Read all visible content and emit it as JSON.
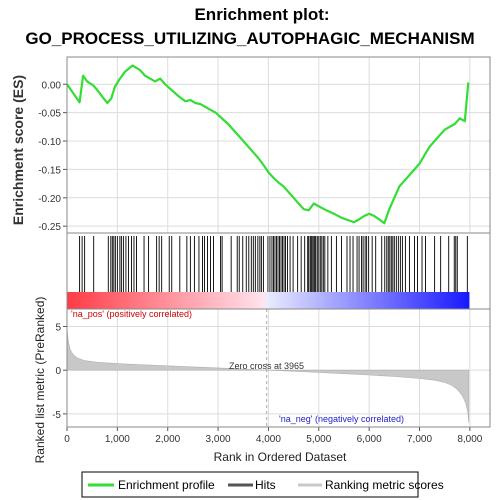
{
  "chart_data": {
    "type": "line",
    "title_line1": "Enrichment plot:",
    "title_line2": "GO_PROCESS_UTILIZING_AUTOPHAGIC_MECHANISM",
    "top_panel": {
      "ylabel": "Enrichment score (ES)",
      "ylim": [
        -0.262,
        0.048
      ],
      "yticks": [
        0.0,
        -0.05,
        -0.1,
        -0.15,
        -0.2,
        -0.25
      ],
      "ytick_labels": [
        "0.00",
        "-0.05",
        "-0.10",
        "-0.15",
        "-0.20",
        "-0.25"
      ],
      "series_name": "Enrichment profile",
      "x": [
        0,
        250,
        320,
        400,
        520,
        600,
        700,
        800,
        880,
        950,
        1050,
        1150,
        1300,
        1450,
        1550,
        1650,
        1750,
        1850,
        1950,
        2050,
        2200,
        2350,
        2450,
        2550,
        2650,
        2750,
        2850,
        2950,
        3050,
        3200,
        3350,
        3500,
        3650,
        3800,
        3900,
        4000,
        4100,
        4200,
        4300,
        4400,
        4500,
        4600,
        4700,
        4800,
        4900,
        5000,
        5150,
        5300,
        5450,
        5600,
        5700,
        5800,
        5900,
        6000,
        6100,
        6200,
        6300,
        6400,
        6500,
        6600,
        6700,
        6800,
        6900,
        7000,
        7100,
        7200,
        7300,
        7400,
        7500,
        7600,
        7700,
        7800,
        7900,
        7970
      ],
      "y": [
        0.0,
        -0.032,
        0.015,
        0.005,
        -0.002,
        -0.01,
        -0.022,
        -0.033,
        -0.025,
        -0.005,
        0.01,
        0.022,
        0.033,
        0.025,
        0.015,
        0.01,
        0.005,
        0.01,
        0.0,
        -0.008,
        -0.02,
        -0.03,
        -0.028,
        -0.033,
        -0.035,
        -0.04,
        -0.045,
        -0.05,
        -0.058,
        -0.07,
        -0.085,
        -0.1,
        -0.115,
        -0.13,
        -0.142,
        -0.155,
        -0.165,
        -0.173,
        -0.18,
        -0.19,
        -0.2,
        -0.21,
        -0.22,
        -0.222,
        -0.21,
        -0.215,
        -0.222,
        -0.228,
        -0.235,
        -0.24,
        -0.243,
        -0.238,
        -0.232,
        -0.228,
        -0.232,
        -0.238,
        -0.245,
        -0.22,
        -0.2,
        -0.18,
        -0.17,
        -0.16,
        -0.15,
        -0.14,
        -0.125,
        -0.11,
        -0.1,
        -0.09,
        -0.08,
        -0.075,
        -0.07,
        -0.06,
        -0.065,
        0.003
      ]
    },
    "hits": [
      250,
      300,
      350,
      530,
      820,
      870,
      900,
      930,
      960,
      1000,
      1050,
      1080,
      1120,
      1170,
      1220,
      1280,
      1330,
      1380,
      1530,
      1620,
      1780,
      1830,
      1880,
      2030,
      2080,
      2240,
      2380,
      2450,
      2530,
      2620,
      2690,
      2730,
      2790,
      2850,
      2910,
      3050,
      3080,
      3260,
      3380,
      3420,
      3490,
      3560,
      3610,
      3660,
      3700,
      3740,
      3790,
      3830,
      3860,
      3900,
      3990,
      4030,
      4070,
      4100,
      4130,
      4160,
      4190,
      4220,
      4250,
      4280,
      4310,
      4340,
      4380,
      4430,
      4490,
      4580,
      4650,
      4720,
      4780,
      4800,
      4830,
      4850,
      4870,
      4900,
      4920,
      4940,
      4970,
      5000,
      5030,
      5060,
      5090,
      5120,
      5180,
      5250,
      5350,
      5450,
      5560,
      5620,
      5680,
      5760,
      5800,
      5850,
      5880,
      5920,
      5950,
      5990,
      6060,
      6130,
      6250,
      6310,
      6350,
      6380,
      6410,
      6440,
      6470,
      6500,
      6540,
      6580,
      6620,
      6660,
      6720,
      6800,
      6900,
      6960,
      7050,
      7120,
      7300,
      7420,
      7580,
      7690,
      7720,
      7750,
      7950
    ],
    "bottom_panel": {
      "ylabel": "Ranked list metric (PreRanked)",
      "xlabel": "Rank in Ordered Dataset",
      "ylim": [
        -6.5,
        7.0
      ],
      "yticks": [
        5,
        0,
        -5
      ],
      "ytick_labels": [
        "5",
        "0",
        "-5"
      ],
      "xlim": [
        0,
        8400
      ],
      "xticks": [
        0,
        1000,
        2000,
        3000,
        4000,
        5000,
        6000,
        7000,
        8000
      ],
      "xtick_labels": [
        "0",
        "1,000",
        "2,000",
        "3,000",
        "4,000",
        "5,000",
        "6,000",
        "7,000",
        "8,000"
      ],
      "zero_cross_rank": 3965,
      "zero_cross_label": "Zero cross at 3965",
      "pos_label": "'na_pos' (positively correlated)",
      "neg_label": "'na_neg' (negatively correlated)",
      "metric_x": [
        0,
        20,
        60,
        120,
        200,
        350,
        600,
        1000,
        1500,
        2000,
        2500,
        3000,
        3500,
        3965,
        4500,
        5000,
        5500,
        6000,
        6500,
        7000,
        7300,
        7500,
        7650,
        7750,
        7850,
        7920,
        7960,
        7980
      ],
      "metric_y": [
        4.8,
        3.5,
        2.4,
        1.8,
        1.4,
        1.1,
        0.9,
        0.75,
        0.62,
        0.5,
        0.38,
        0.26,
        0.12,
        0.0,
        -0.12,
        -0.26,
        -0.4,
        -0.55,
        -0.72,
        -0.95,
        -1.15,
        -1.4,
        -1.75,
        -2.2,
        -2.9,
        -3.8,
        -4.8,
        -6.0
      ]
    },
    "legend": {
      "items": [
        "Enrichment profile",
        "Hits",
        "Ranking metric scores"
      ],
      "placement": "bottom"
    },
    "colors": {
      "enrichment": "#33dd33",
      "hits": "#000000",
      "metric": "#c8c8c8",
      "pos_text": "#cc0000",
      "neg_text": "#2222cc",
      "grid": "#dcdcdc"
    },
    "max_rank": 7980
  }
}
